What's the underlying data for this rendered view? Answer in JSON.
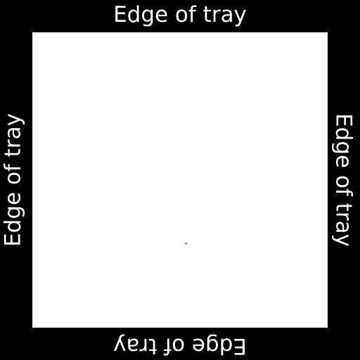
{
  "labels": {
    "top": "Edge of tray",
    "bottom": "Edge of tray",
    "left": "Edge of tray",
    "right": "Edge of tray"
  },
  "colors": {
    "border": "#000000",
    "tray": "#ffffff",
    "text": "#ffffff",
    "dot": "#8a8a8a"
  }
}
